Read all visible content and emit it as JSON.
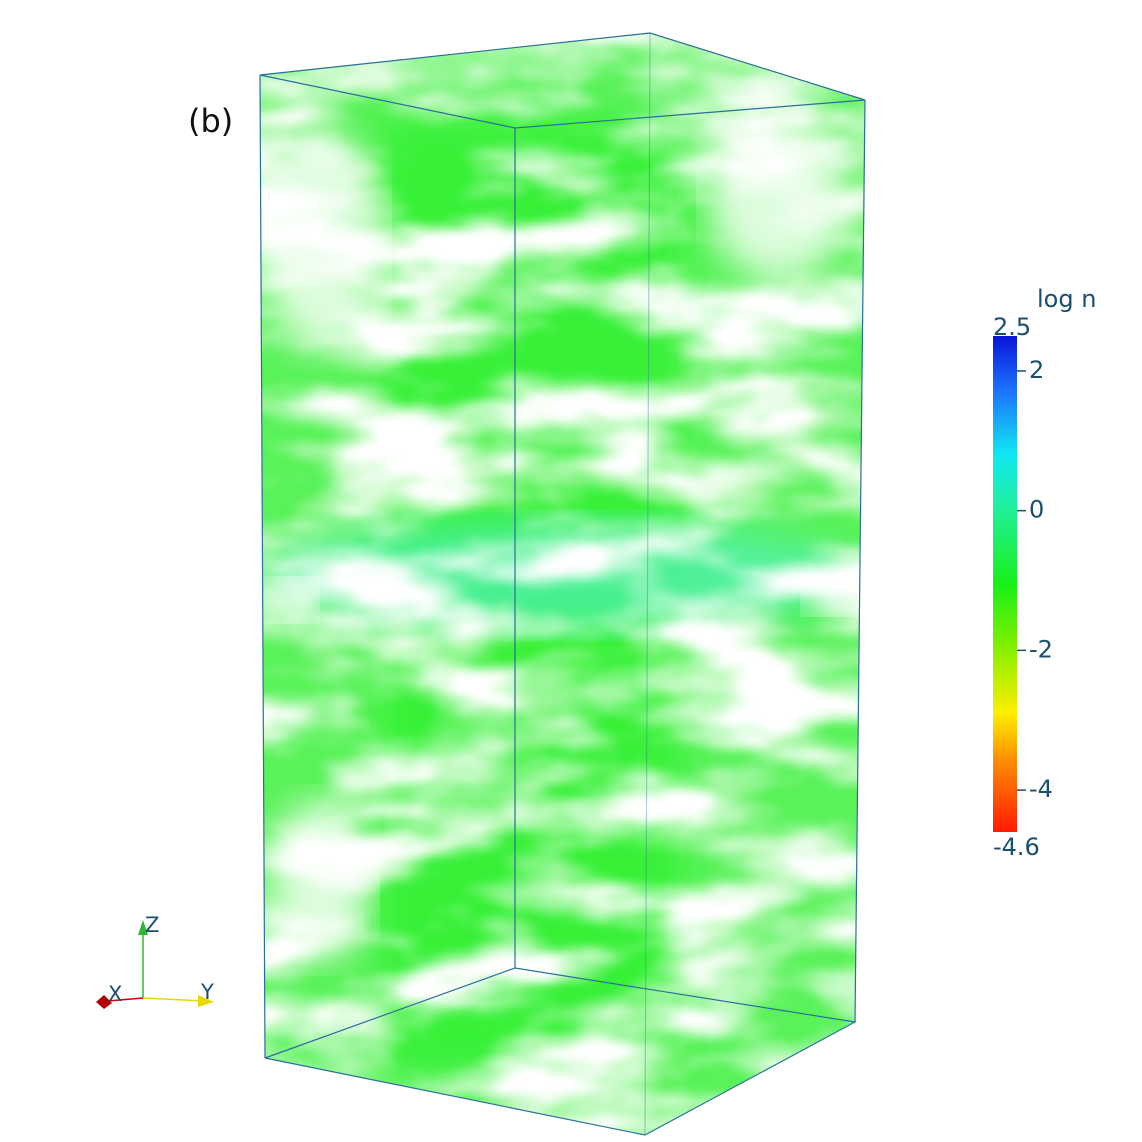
{
  "panel_label": "(b)",
  "colorbar": {
    "title": "log n",
    "range": [
      -4.6,
      2.5
    ],
    "ticks": [
      -4,
      -2,
      0,
      2
    ]
  },
  "axes": {
    "x": "X",
    "y": "Y",
    "z": "Z"
  }
}
